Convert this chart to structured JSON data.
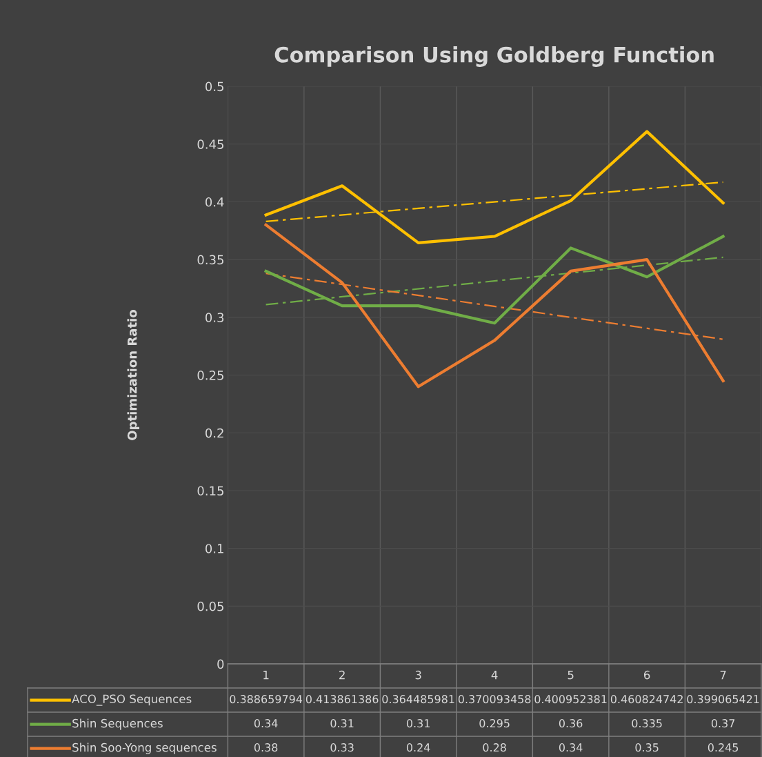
{
  "chart_data": {
    "type": "line",
    "title": "Comparison Using Goldberg Function",
    "ylabel": "Optimization Ratio",
    "categories": [
      "1",
      "2",
      "3",
      "4",
      "5",
      "6",
      "7"
    ],
    "series": [
      {
        "name": "ACO_PSO Sequences",
        "color": "#ffc000",
        "values": [
          0.388659794,
          0.413861386,
          0.364485981,
          0.370093458,
          0.400952381,
          0.460824742,
          0.399065421
        ],
        "value_labels": [
          "0.388659794",
          "0.413861386",
          "0.364485981",
          "0.370093458",
          "0.400952381",
          "0.460824742",
          "0.399065421"
        ]
      },
      {
        "name": "Shin Sequences",
        "color": "#70ad47",
        "values": [
          0.34,
          0.31,
          0.31,
          0.295,
          0.36,
          0.335,
          0.37
        ],
        "value_labels": [
          "0.34",
          "0.31",
          "0.31",
          "0.295",
          "0.36",
          "0.335",
          "0.37"
        ]
      },
      {
        "name": "Shin Soo-Yong sequences",
        "color": "#ed7d31",
        "values": [
          0.38,
          0.33,
          0.24,
          0.28,
          0.34,
          0.35,
          0.245
        ],
        "value_labels": [
          "0.38",
          "0.33",
          "0.24",
          "0.28",
          "0.34",
          "0.35",
          "0.245"
        ]
      },
      {
        "type": "line",
        "color": "#ffc000",
        "line_style": "dashed",
        "x": [
          "1",
          "7"
        ],
        "values": [
          0.383,
          0.417
        ]
      },
      {
        "type": "line",
        "color": "#70ad47",
        "line_style": "dashed",
        "x": [
          "1",
          "7"
        ],
        "values": [
          0.311,
          0.352
        ]
      },
      {
        "type": "line",
        "color": "#ed7d31",
        "line_style": "dashed",
        "x": [
          "1",
          "7"
        ],
        "values": [
          0.338,
          0.281
        ]
      }
    ],
    "ylim": [
      0,
      0.5
    ],
    "yticks": [
      0,
      0.05,
      0.1,
      0.15,
      0.2,
      0.25,
      0.3,
      0.35,
      0.4,
      0.45,
      0.5
    ],
    "grid": true,
    "legend": "bottom",
    "tick_labels": "y",
    "marker": "none",
    "line_style": "solid"
  }
}
